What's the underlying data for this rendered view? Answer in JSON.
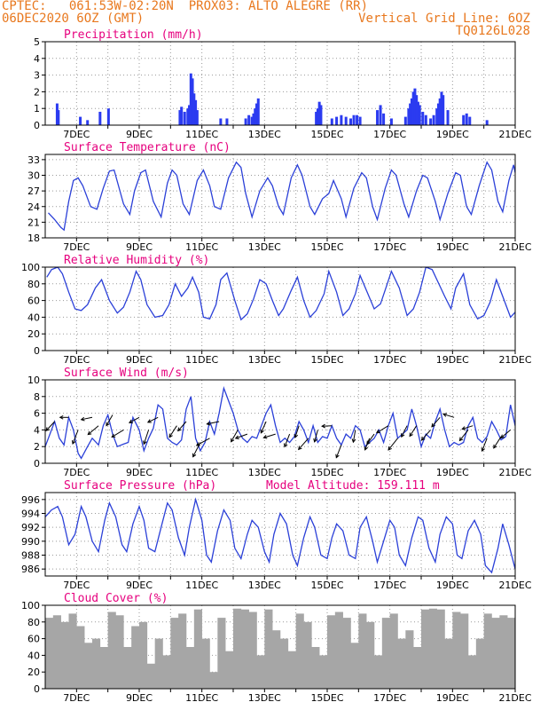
{
  "header": {
    "line1_left": "CPTEC:   061:53W-02:20N  PROX03: ALTO ALEGRE (RR)",
    "line2_left": "06DEC2020 6OZ (GMT)",
    "line2_right": "Vertical Grid Line: 6OZ",
    "line3_right": "TQ0126L028"
  },
  "colors": {
    "header": "#e8781e",
    "title": "#e6007e",
    "line": "#2b40d8",
    "bar": "#2b3bf0",
    "cloud": "#a6a6a6",
    "arrow": "#000000"
  },
  "x_labels": [
    "7DEC",
    "9DEC",
    "11DEC",
    "13DEC",
    "15DEC",
    "17DEC",
    "19DEC",
    "21DEC"
  ],
  "chart_data": [
    {
      "type": "bar",
      "title": "Precipitation (mm/h)",
      "ylim": [
        0,
        5
      ],
      "yticks": [
        "0",
        "1",
        "2",
        "3",
        "4",
        "5"
      ],
      "grid": true,
      "x": [
        6.38,
        6.42,
        7.12,
        7.35,
        7.75,
        8.02,
        10.3,
        10.35,
        10.45,
        10.55,
        10.6,
        10.65,
        10.7,
        10.75,
        10.8,
        10.85,
        11.6,
        11.8,
        12.4,
        12.5,
        12.6,
        12.65,
        12.7,
        12.75,
        12.8,
        14.65,
        14.7,
        14.75,
        14.8,
        15.15,
        15.3,
        15.45,
        15.6,
        15.75,
        15.85,
        15.95,
        16.05,
        16.6,
        16.7,
        16.8,
        17.05,
        17.5,
        17.6,
        17.65,
        17.7,
        17.75,
        17.8,
        17.85,
        17.9,
        17.95,
        18.05,
        18.15,
        18.3,
        18.4,
        18.5,
        18.55,
        18.6,
        18.65,
        18.7,
        18.85,
        19.35,
        19.45,
        19.55,
        20.1
      ],
      "values": [
        1.3,
        0.9,
        0.5,
        0.3,
        0.8,
        1.0,
        0.9,
        1.1,
        0.8,
        1.0,
        1.2,
        3.1,
        2.8,
        1.9,
        1.5,
        0.9,
        0.4,
        0.4,
        0.4,
        0.6,
        0.5,
        0.7,
        1.0,
        1.3,
        1.6,
        0.8,
        1.0,
        1.4,
        1.2,
        0.4,
        0.5,
        0.6,
        0.5,
        0.4,
        0.6,
        0.6,
        0.5,
        0.9,
        1.2,
        0.7,
        0.4,
        0.5,
        1.0,
        1.3,
        1.6,
        2.0,
        2.2,
        1.8,
        1.4,
        1.2,
        0.8,
        0.6,
        0.4,
        0.6,
        1.0,
        1.3,
        1.6,
        2.0,
        1.8,
        0.9,
        0.6,
        0.7,
        0.5,
        0.3
      ]
    },
    {
      "type": "line",
      "title": "Surface Temperature (nC)",
      "ylim": [
        18,
        34
      ],
      "yticks": [
        "18",
        "21",
        "24",
        "27",
        "30",
        "33"
      ],
      "grid": true,
      "x": [
        6.1,
        6.3,
        6.5,
        6.6,
        6.75,
        6.9,
        7.05,
        7.2,
        7.45,
        7.65,
        7.85,
        8.05,
        8.2,
        8.5,
        8.7,
        8.85,
        9.05,
        9.2,
        9.45,
        9.7,
        9.9,
        10.05,
        10.2,
        10.4,
        10.6,
        10.85,
        11.05,
        11.25,
        11.4,
        11.6,
        11.85,
        12.1,
        12.25,
        12.4,
        12.6,
        12.85,
        13.1,
        13.25,
        13.45,
        13.6,
        13.85,
        14.05,
        14.2,
        14.45,
        14.6,
        14.85,
        15.05,
        15.2,
        15.45,
        15.6,
        15.85,
        16.1,
        16.25,
        16.45,
        16.6,
        16.85,
        17.05,
        17.2,
        17.45,
        17.6,
        17.85,
        18.05,
        18.2,
        18.45,
        18.6,
        18.85,
        19.1,
        19.25,
        19.45,
        19.6,
        19.85,
        20.1,
        20.25,
        20.45,
        20.6,
        20.8,
        20.95,
        21.0
      ],
      "values": [
        22.8,
        21.5,
        20.0,
        19.5,
        25.0,
        29.0,
        29.5,
        28.0,
        24.0,
        23.5,
        27.5,
        30.8,
        31.0,
        24.5,
        22.5,
        27.0,
        30.5,
        31.0,
        25.0,
        22.0,
        28.5,
        31.0,
        30.0,
        24.5,
        22.5,
        29.0,
        31.0,
        28.0,
        24.0,
        23.5,
        29.5,
        32.5,
        31.5,
        26.5,
        22.0,
        27.0,
        29.5,
        28.0,
        24.0,
        22.5,
        29.5,
        32.0,
        30.0,
        24.0,
        22.5,
        25.5,
        26.5,
        29.0,
        25.5,
        22.0,
        27.5,
        30.5,
        29.5,
        24.0,
        21.5,
        27.5,
        31.0,
        30.0,
        24.5,
        22.0,
        27.0,
        30.0,
        29.5,
        25.0,
        21.5,
        26.5,
        30.5,
        30.0,
        24.0,
        22.5,
        28.0,
        32.5,
        31.0,
        25.0,
        23.0,
        29.0,
        32.0,
        30.5
      ]
    },
    {
      "type": "line",
      "title": "Relative Humidity (%)",
      "ylim": [
        0,
        100
      ],
      "yticks": [
        "0",
        "20",
        "40",
        "60",
        "80",
        "100"
      ],
      "grid": true,
      "x": [
        6.05,
        6.2,
        6.4,
        6.55,
        6.75,
        6.95,
        7.15,
        7.35,
        7.6,
        7.8,
        8.05,
        8.3,
        8.5,
        8.7,
        8.9,
        9.05,
        9.25,
        9.5,
        9.75,
        9.95,
        10.15,
        10.35,
        10.55,
        10.7,
        10.9,
        11.05,
        11.25,
        11.45,
        11.6,
        11.8,
        12.05,
        12.25,
        12.45,
        12.65,
        12.85,
        13.05,
        13.25,
        13.45,
        13.6,
        13.85,
        14.05,
        14.25,
        14.45,
        14.65,
        14.9,
        15.05,
        15.3,
        15.5,
        15.7,
        15.9,
        16.05,
        16.3,
        16.5,
        16.7,
        16.9,
        17.05,
        17.3,
        17.55,
        17.75,
        17.95,
        18.15,
        18.35,
        18.5,
        18.75,
        18.95,
        19.1,
        19.35,
        19.55,
        19.8,
        20.0,
        20.2,
        20.4,
        20.6,
        20.85,
        21.0
      ],
      "values": [
        88,
        97,
        100,
        92,
        70,
        50,
        48,
        55,
        75,
        85,
        60,
        45,
        52,
        70,
        95,
        85,
        55,
        40,
        42,
        55,
        80,
        65,
        75,
        88,
        70,
        40,
        38,
        55,
        85,
        93,
        60,
        37,
        44,
        62,
        85,
        80,
        60,
        42,
        50,
        72,
        88,
        60,
        40,
        48,
        68,
        95,
        70,
        42,
        50,
        68,
        90,
        68,
        50,
        56,
        78,
        95,
        75,
        42,
        50,
        70,
        100,
        97,
        85,
        65,
        50,
        75,
        92,
        55,
        38,
        42,
        58,
        85,
        65,
        40,
        46
      ]
    },
    {
      "type": "line",
      "title": "Surface Wind (m/s)",
      "ylim": [
        0,
        10
      ],
      "yticks": [
        "0",
        "2",
        "4",
        "6",
        "8",
        "10"
      ],
      "grid": true,
      "x": [
        6.0,
        6.15,
        6.3,
        6.45,
        6.6,
        6.75,
        6.9,
        7.05,
        7.15,
        7.35,
        7.5,
        7.7,
        7.85,
        8.0,
        8.15,
        8.3,
        8.5,
        8.65,
        8.8,
        9.0,
        9.15,
        9.3,
        9.45,
        9.6,
        9.75,
        9.9,
        10.05,
        10.2,
        10.35,
        10.5,
        10.65,
        10.8,
        10.95,
        11.1,
        11.25,
        11.4,
        11.55,
        11.7,
        11.85,
        12.0,
        12.15,
        12.3,
        12.45,
        12.6,
        12.75,
        12.9,
        13.05,
        13.2,
        13.35,
        13.5,
        13.65,
        13.8,
        13.95,
        14.1,
        14.25,
        14.4,
        14.55,
        14.7,
        14.85,
        15.0,
        15.15,
        15.3,
        15.45,
        15.6,
        15.75,
        15.9,
        16.05,
        16.2,
        16.35,
        16.5,
        16.65,
        16.8,
        16.95,
        17.1,
        17.25,
        17.4,
        17.55,
        17.7,
        17.85,
        18.0,
        18.15,
        18.3,
        18.45,
        18.6,
        18.75,
        18.9,
        19.05,
        19.2,
        19.35,
        19.5,
        19.65,
        19.8,
        19.95,
        20.1,
        20.25,
        20.4,
        20.55,
        20.7,
        20.85,
        21.0
      ],
      "values": [
        2.0,
        3.5,
        5.0,
        3.0,
        2.2,
        5.5,
        4.0,
        1.2,
        0.6,
        2.0,
        3.0,
        2.2,
        4.5,
        5.8,
        3.5,
        2.0,
        2.3,
        2.5,
        5.5,
        4.0,
        1.5,
        3.0,
        4.2,
        7.0,
        6.5,
        3.0,
        2.5,
        2.2,
        2.8,
        6.5,
        8.0,
        3.0,
        1.5,
        2.5,
        5.0,
        3.5,
        6.0,
        9.0,
        7.5,
        6.0,
        4.0,
        3.0,
        2.5,
        3.2,
        3.0,
        4.5,
        6.0,
        7.0,
        4.5,
        2.5,
        3.0,
        2.5,
        3.2,
        5.0,
        4.0,
        2.5,
        4.5,
        2.5,
        3.2,
        3.0,
        4.5,
        3.0,
        2.2,
        3.5,
        3.0,
        4.5,
        4.0,
        2.0,
        2.5,
        3.0,
        4.0,
        2.5,
        4.5,
        6.0,
        3.0,
        3.5,
        4.0,
        6.5,
        4.5,
        2.0,
        3.5,
        3.0,
        5.0,
        6.5,
        4.0,
        2.0,
        2.5,
        2.2,
        2.5,
        4.5,
        5.5,
        3.0,
        2.5,
        3.2,
        5.0,
        4.0,
        2.8,
        3.2,
        7.0,
        4.5
      ],
      "vectors": [
        {
          "x": 6.3,
          "y": 5.0,
          "dir": 0.82,
          "len": 1.0
        },
        {
          "x": 6.75,
          "y": 5.5,
          "dir": 0.0,
          "len": 0.7
        },
        {
          "x": 7.05,
          "y": 4.0,
          "dir": 1.2,
          "len": 1.2
        },
        {
          "x": 7.5,
          "y": 5.5,
          "dir": 0.2,
          "len": 0.9
        },
        {
          "x": 7.7,
          "y": 4.5,
          "dir": 0.7,
          "len": 1.1
        },
        {
          "x": 8.15,
          "y": 5.8,
          "dir": 1.05,
          "len": 1.0
        },
        {
          "x": 8.5,
          "y": 4.0,
          "dir": 0.55,
          "len": 1.1
        },
        {
          "x": 9.0,
          "y": 5.5,
          "dir": 0.5,
          "len": 0.9
        },
        {
          "x": 9.3,
          "y": 4.0,
          "dir": 1.25,
          "len": 1.2
        },
        {
          "x": 9.6,
          "y": 5.5,
          "dir": 0.45,
          "len": 0.9
        },
        {
          "x": 10.2,
          "y": 4.5,
          "dir": 1.0,
          "len": 1.1
        },
        {
          "x": 10.5,
          "y": 5.0,
          "dir": 0.85,
          "len": 1.0
        },
        {
          "x": 10.95,
          "y": 2.5,
          "dir": 1.1,
          "len": 1.3
        },
        {
          "x": 11.25,
          "y": 3.0,
          "dir": 0.5,
          "len": 1.2
        },
        {
          "x": 11.55,
          "y": 5.0,
          "dir": 0.2,
          "len": 1.0
        },
        {
          "x": 12.15,
          "y": 4.0,
          "dir": 1.05,
          "len": 1.1
        },
        {
          "x": 12.45,
          "y": 3.5,
          "dir": 0.35,
          "len": 1.0
        },
        {
          "x": 13.05,
          "y": 5.0,
          "dir": 1.15,
          "len": 1.0
        },
        {
          "x": 13.35,
          "y": 3.5,
          "dir": 0.3,
          "len": 1.0
        },
        {
          "x": 13.8,
          "y": 3.5,
          "dir": 1.2,
          "len": 1.1
        },
        {
          "x": 14.1,
          "y": 4.5,
          "dir": 1.25,
          "len": 1.0
        },
        {
          "x": 14.4,
          "y": 3.0,
          "dir": 0.85,
          "len": 1.2
        },
        {
          "x": 14.7,
          "y": 4.0,
          "dir": 1.3,
          "len": 1.0
        },
        {
          "x": 15.15,
          "y": 4.5,
          "dir": 0.05,
          "len": 0.8
        },
        {
          "x": 15.45,
          "y": 2.2,
          "dir": 1.2,
          "len": 1.1
        },
        {
          "x": 15.9,
          "y": 4.0,
          "dir": 1.4,
          "len": 1.0
        },
        {
          "x": 16.35,
          "y": 3.0,
          "dir": 1.2,
          "len": 1.0
        },
        {
          "x": 16.5,
          "y": 3.5,
          "dir": 0.95,
          "len": 1.0
        },
        {
          "x": 16.95,
          "y": 4.5,
          "dir": 0.55,
          "len": 1.1
        },
        {
          "x": 17.25,
          "y": 3.0,
          "dir": 0.9,
          "len": 1.2
        },
        {
          "x": 17.55,
          "y": 4.5,
          "dir": 1.1,
          "len": 1.0
        },
        {
          "x": 17.85,
          "y": 4.5,
          "dir": 1.0,
          "len": 1.0
        },
        {
          "x": 18.3,
          "y": 4.0,
          "dir": 0.85,
          "len": 1.1
        },
        {
          "x": 18.6,
          "y": 5.5,
          "dir": 0.85,
          "len": 1.0
        },
        {
          "x": 19.05,
          "y": 5.5,
          "dir": -0.3,
          "len": 0.9
        },
        {
          "x": 19.5,
          "y": 4.0,
          "dir": 0.9,
          "len": 1.1
        },
        {
          "x": 19.65,
          "y": 4.5,
          "dir": 0.3,
          "len": 0.9
        },
        {
          "x": 20.1,
          "y": 3.0,
          "dir": 1.2,
          "len": 1.1
        },
        {
          "x": 20.55,
          "y": 3.2,
          "dir": 1.0,
          "len": 1.1
        },
        {
          "x": 20.85,
          "y": 4.0,
          "dir": 0.7,
          "len": 1.0
        }
      ]
    },
    {
      "type": "line",
      "title": "Surface Pressure (hPa)",
      "annotation": "Model Altitude: 159.111  m",
      "ylim": [
        985,
        997
      ],
      "yticks": [
        "986",
        "988",
        "990",
        "992",
        "994",
        "996"
      ],
      "grid": true,
      "x": [
        6.0,
        6.2,
        6.4,
        6.55,
        6.75,
        6.95,
        7.15,
        7.3,
        7.5,
        7.7,
        7.9,
        8.05,
        8.25,
        8.45,
        8.6,
        8.8,
        9.0,
        9.15,
        9.3,
        9.5,
        9.7,
        9.9,
        10.05,
        10.25,
        10.45,
        10.6,
        10.8,
        11.0,
        11.15,
        11.3,
        11.5,
        11.7,
        11.9,
        12.05,
        12.25,
        12.45,
        12.6,
        12.8,
        13.0,
        13.15,
        13.3,
        13.5,
        13.7,
        13.9,
        14.05,
        14.25,
        14.45,
        14.6,
        14.8,
        15.0,
        15.15,
        15.3,
        15.5,
        15.7,
        15.9,
        16.05,
        16.25,
        16.45,
        16.6,
        16.8,
        17.0,
        17.15,
        17.3,
        17.5,
        17.7,
        17.9,
        18.05,
        18.25,
        18.45,
        18.6,
        18.8,
        19.0,
        19.15,
        19.3,
        19.5,
        19.7,
        19.9,
        20.05,
        20.25,
        20.45,
        20.6,
        20.8,
        21.0
      ],
      "values": [
        993.5,
        994.5,
        995.0,
        993.5,
        989.5,
        991.0,
        995.0,
        993.5,
        990.0,
        988.5,
        993.0,
        995.5,
        993.5,
        989.5,
        988.5,
        992.5,
        995.0,
        993.0,
        989.0,
        988.5,
        992.0,
        995.5,
        994.5,
        990.5,
        988.0,
        992.0,
        996.0,
        993.0,
        988.0,
        987.0,
        991.5,
        994.5,
        993.0,
        989.0,
        987.5,
        991.0,
        993.0,
        992.0,
        988.5,
        987.0,
        991.0,
        994.0,
        992.5,
        988.0,
        986.5,
        990.5,
        993.5,
        992.0,
        988.0,
        987.5,
        990.5,
        992.5,
        991.5,
        988.0,
        987.5,
        992.0,
        993.5,
        990.0,
        987.0,
        990.0,
        993.0,
        992.0,
        988.0,
        986.5,
        990.5,
        993.5,
        993.0,
        989.0,
        987.0,
        991.0,
        993.5,
        992.5,
        988.0,
        987.5,
        991.5,
        993.0,
        991.0,
        986.5,
        985.5,
        989.0,
        992.5,
        989.5,
        986.0
      ]
    },
    {
      "type": "bar",
      "title": "Cloud Cover (%)",
      "ylim": [
        0,
        100
      ],
      "yticks": [
        "0",
        "20",
        "40",
        "60",
        "80",
        "100"
      ],
      "grid": true,
      "x": [
        6.0,
        6.25,
        6.5,
        6.75,
        7.0,
        7.25,
        7.5,
        7.75,
        8.0,
        8.25,
        8.5,
        8.75,
        9.0,
        9.25,
        9.5,
        9.75,
        10.0,
        10.25,
        10.5,
        10.75,
        11.0,
        11.25,
        11.5,
        11.75,
        12.0,
        12.25,
        12.5,
        12.75,
        13.0,
        13.25,
        13.5,
        13.75,
        14.0,
        14.25,
        14.5,
        14.75,
        15.0,
        15.25,
        15.5,
        15.75,
        16.0,
        16.25,
        16.5,
        16.75,
        17.0,
        17.25,
        17.5,
        17.75,
        18.0,
        18.25,
        18.5,
        18.75,
        19.0,
        19.25,
        19.5,
        19.75,
        20.0,
        20.25,
        20.5,
        20.75
      ],
      "values": [
        85,
        88,
        80,
        90,
        75,
        55,
        60,
        50,
        92,
        88,
        50,
        75,
        80,
        30,
        60,
        40,
        85,
        90,
        50,
        95,
        60,
        20,
        85,
        45,
        96,
        95,
        92,
        40,
        95,
        70,
        60,
        45,
        90,
        80,
        50,
        40,
        88,
        92,
        85,
        55,
        90,
        80,
        40,
        85,
        90,
        60,
        70,
        50,
        95,
        96,
        95,
        60,
        92,
        90,
        40,
        60,
        90,
        85,
        88,
        85
      ]
    }
  ]
}
